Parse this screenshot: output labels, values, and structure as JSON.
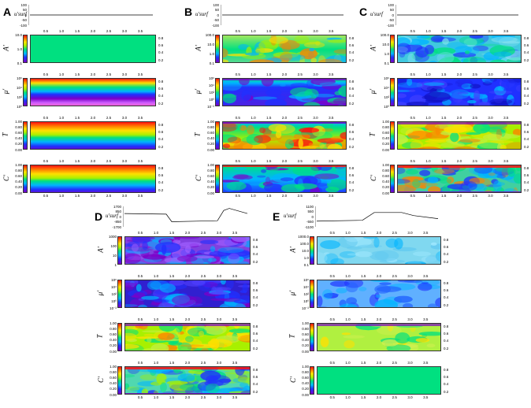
{
  "panels": {
    "A": {
      "letter": "A",
      "usurf_label": "u'surf",
      "usurf_ticks": [
        "100",
        "50",
        "0",
        "-50",
        "-100"
      ]
    },
    "B": {
      "letter": "B",
      "usurf_label": "u'surf",
      "usurf_ticks": [
        "100",
        "50",
        "0",
        "-50",
        "-100"
      ]
    },
    "C": {
      "letter": "C",
      "usurf_label": "u'surf",
      "usurf_ticks": [
        "100",
        "50",
        "0",
        "-50",
        "-100"
      ]
    },
    "D": {
      "letter": "D",
      "usurf_label": "u'surf",
      "usurf_ticks": [
        "1700",
        "850",
        "0",
        "-850",
        "-1700"
      ]
    },
    "E": {
      "letter": "E",
      "usurf_label": "u'surf",
      "usurf_ticks": [
        "1100",
        "550",
        "0",
        "-550",
        "-1100"
      ]
    }
  },
  "row_labels": {
    "A": "A'",
    "mu": "μ'",
    "T": "T",
    "C": "C'"
  },
  "x_ticks": [
    "0.5",
    "1.0",
    "1.5",
    "2.0",
    "2.5",
    "3.0",
    "3.5"
  ],
  "right_ticks": [
    "0.8",
    "0.6",
    "0.4",
    "0.2"
  ],
  "left_ticks": {
    "A_top": [
      "10.0",
      "1.0",
      "0.1"
    ],
    "A_B": [
      "100.0",
      "10.0",
      "1.0",
      "0.1"
    ],
    "A_C": [
      "100.0",
      "10.0",
      "1.0",
      "0.1"
    ],
    "A_D": [
      "1000",
      "100",
      "10",
      "1"
    ],
    "A_E": [
      "1000.0",
      "100.0",
      "10.0",
      "1.0",
      "0.1"
    ],
    "mu_A": [
      "10⁶",
      "10⁴",
      "10²",
      "10⁰"
    ],
    "mu_B": [
      "10⁶",
      "10⁴",
      "10²",
      "10⁰",
      "10⁻²"
    ],
    "mu_C": [
      "10⁶",
      "10⁴",
      "10²",
      "10⁰"
    ],
    "mu_D": [
      "10⁶",
      "10⁴",
      "10²",
      "10⁰",
      "10⁻²"
    ],
    "mu_E": [
      "10⁶",
      "10⁴",
      "10²",
      "10⁰",
      "10⁻²"
    ],
    "unit": [
      "1.00",
      "0.80",
      "0.60",
      "0.40",
      "0.20",
      "0.00"
    ]
  },
  "colors": {
    "purple": "#7b00c8",
    "blue": "#2030ff",
    "cyan": "#00b4ff",
    "green": "#00e080",
    "yellowgreen": "#a8f000",
    "yellow": "#ffe000",
    "orange": "#ff8000",
    "red": "#ff1010"
  }
}
